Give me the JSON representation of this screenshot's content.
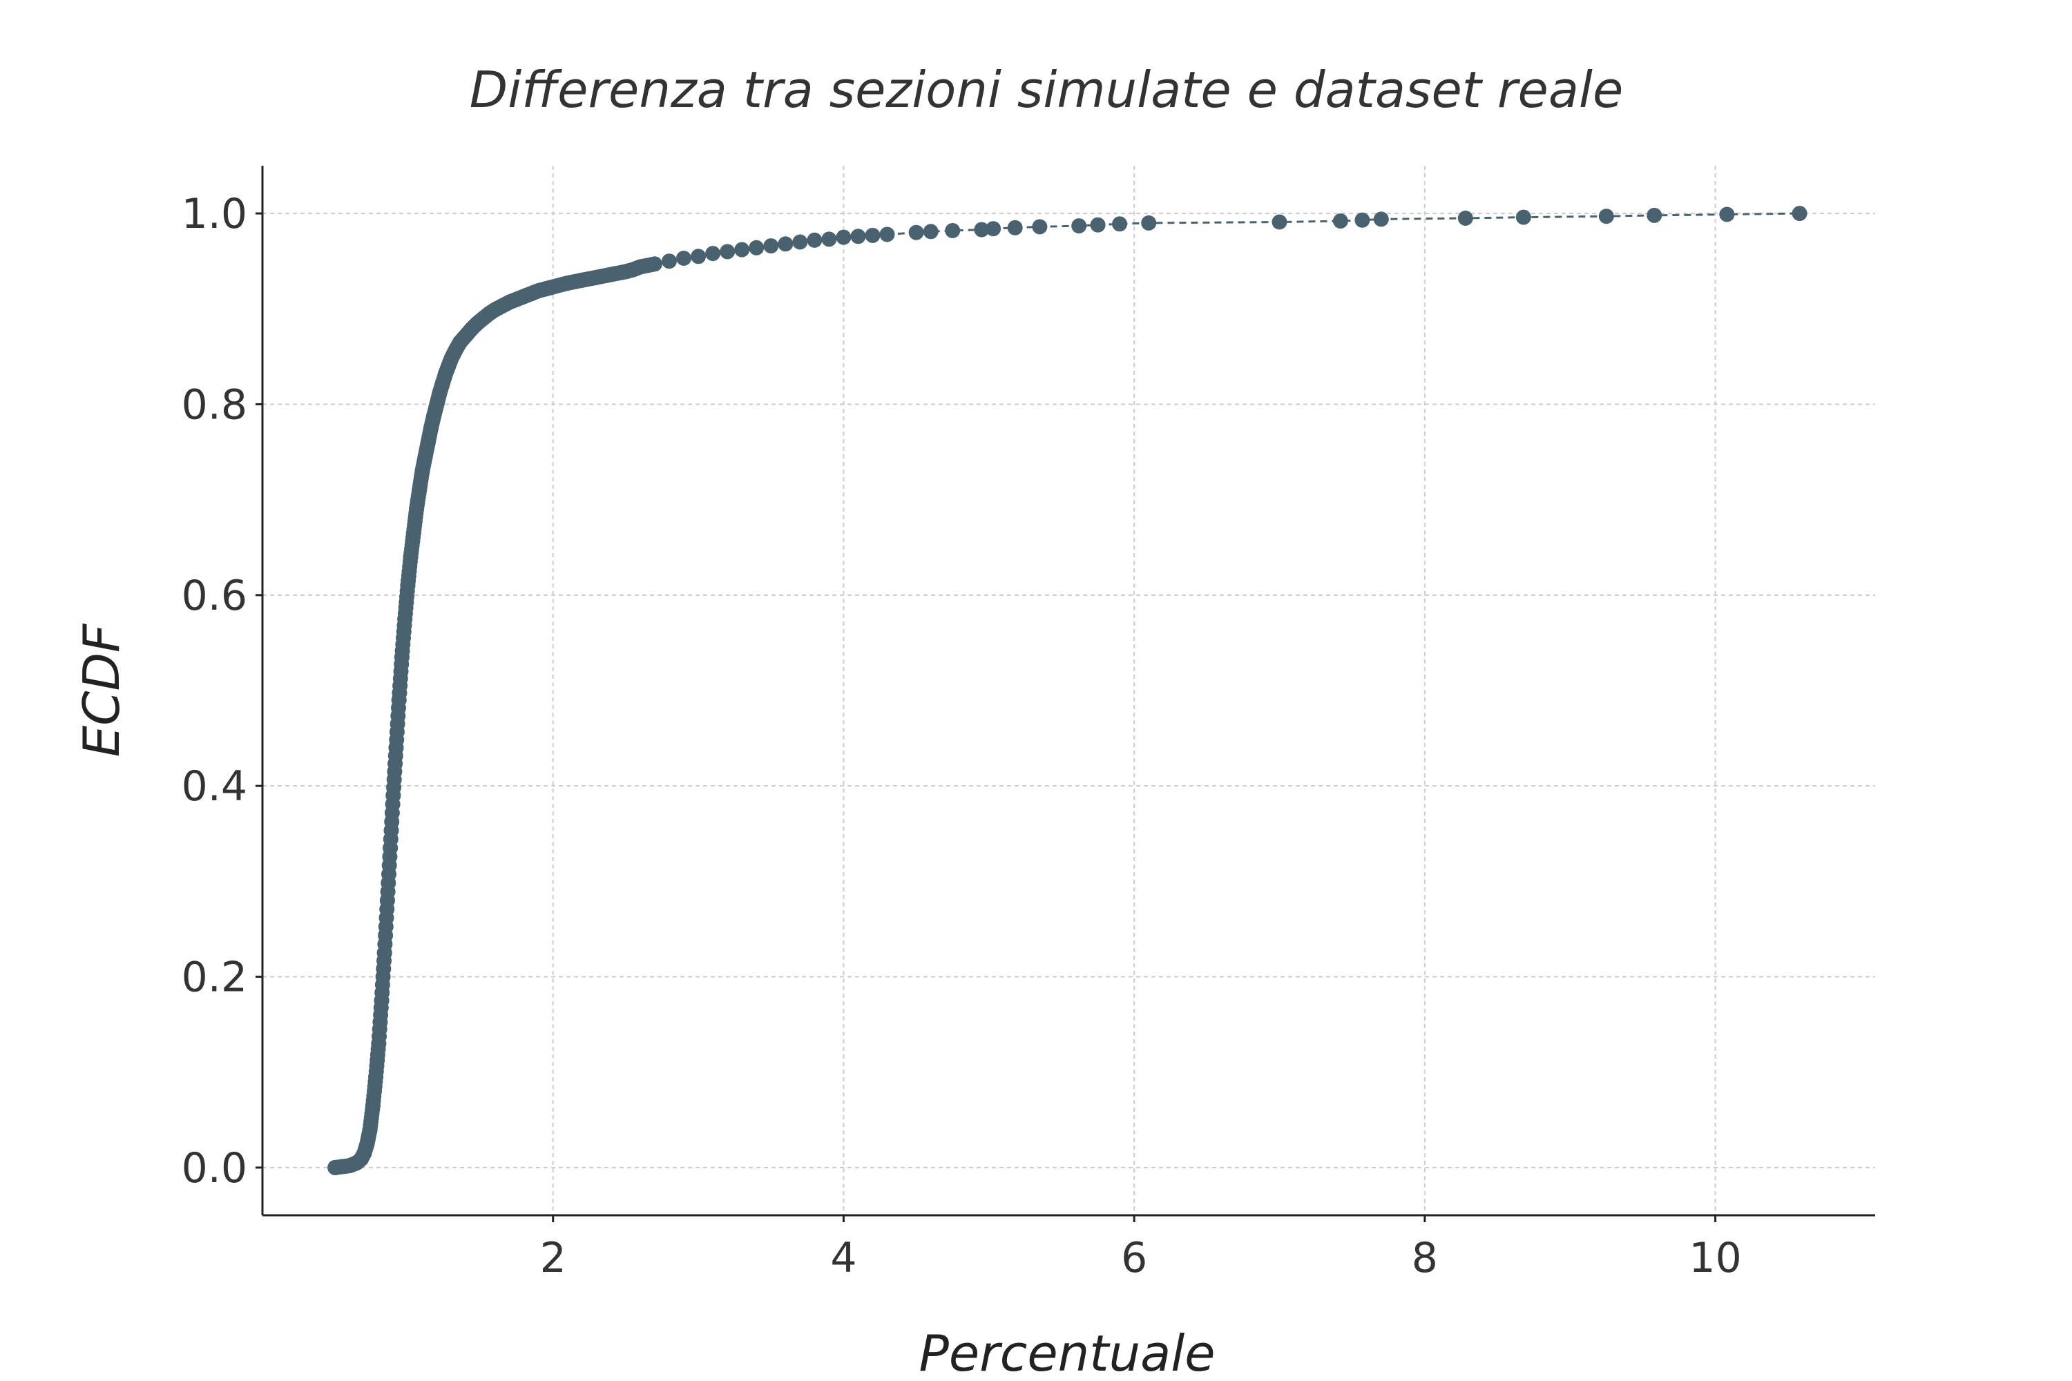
{
  "chart_data": {
    "type": "line",
    "title": "Differenza tra sezioni simulate e dataset reale",
    "xlabel": "Percentuale",
    "ylabel": "ECDF",
    "xlim": [
      0.0,
      11.1
    ],
    "ylim": [
      -0.05,
      1.05
    ],
    "xticks": [
      2,
      4,
      6,
      8,
      10
    ],
    "xtick_labels": [
      "2",
      "4",
      "6",
      "8",
      "10"
    ],
    "yticks": [
      0.0,
      0.2,
      0.4,
      0.6,
      0.8,
      1.0
    ],
    "ytick_labels": [
      "0.0",
      "0.2",
      "0.4",
      "0.6",
      "0.8",
      "1.0"
    ],
    "grid": true,
    "line_style": "dashed",
    "marker": "circle",
    "color": "#4a626f",
    "series": [
      {
        "x": [
          0.5,
          0.6,
          0.65,
          0.68,
          0.7,
          0.72,
          0.74,
          0.76,
          0.78,
          0.8,
          0.82,
          0.84,
          0.86,
          0.88,
          0.9,
          0.92,
          0.94,
          0.96,
          0.98,
          1.0,
          1.02,
          1.04,
          1.06,
          1.08,
          1.1,
          1.12,
          1.14,
          1.16,
          1.18,
          1.2,
          1.22,
          1.24,
          1.26,
          1.28,
          1.3,
          1.33,
          1.36,
          1.4,
          1.44,
          1.48,
          1.52,
          1.56,
          1.6,
          1.65,
          1.7,
          1.75,
          1.8,
          1.85,
          1.9,
          1.95,
          2.0,
          2.1,
          2.2,
          2.3,
          2.4,
          2.5,
          2.55,
          2.6,
          2.7,
          2.8,
          2.9,
          3.0,
          3.1,
          3.2,
          3.3,
          3.4,
          3.5,
          3.6,
          3.7,
          3.8,
          3.9,
          4.0,
          4.1,
          4.2,
          4.3,
          4.5,
          4.6,
          4.75,
          4.95,
          5.03,
          5.18,
          5.35,
          5.62,
          5.75,
          5.9,
          6.1,
          7.0,
          7.42,
          7.57,
          7.7,
          8.28,
          8.68,
          9.25,
          9.58,
          10.08,
          10.58
        ],
        "y": [
          0.0,
          0.002,
          0.005,
          0.009,
          0.015,
          0.025,
          0.04,
          0.065,
          0.095,
          0.13,
          0.175,
          0.225,
          0.28,
          0.335,
          0.39,
          0.44,
          0.49,
          0.535,
          0.575,
          0.61,
          0.64,
          0.665,
          0.69,
          0.71,
          0.73,
          0.745,
          0.76,
          0.775,
          0.788,
          0.8,
          0.812,
          0.822,
          0.832,
          0.84,
          0.848,
          0.857,
          0.865,
          0.872,
          0.879,
          0.885,
          0.89,
          0.895,
          0.899,
          0.903,
          0.907,
          0.91,
          0.913,
          0.916,
          0.919,
          0.921,
          0.923,
          0.927,
          0.93,
          0.933,
          0.936,
          0.939,
          0.941,
          0.944,
          0.947,
          0.95,
          0.953,
          0.955,
          0.958,
          0.96,
          0.962,
          0.964,
          0.966,
          0.968,
          0.97,
          0.972,
          0.973,
          0.975,
          0.976,
          0.977,
          0.978,
          0.98,
          0.981,
          0.982,
          0.983,
          0.984,
          0.985,
          0.986,
          0.987,
          0.988,
          0.989,
          0.99,
          0.991,
          0.992,
          0.993,
          0.994,
          0.995,
          0.996,
          0.997,
          0.998,
          0.999,
          1.0
        ]
      }
    ]
  }
}
